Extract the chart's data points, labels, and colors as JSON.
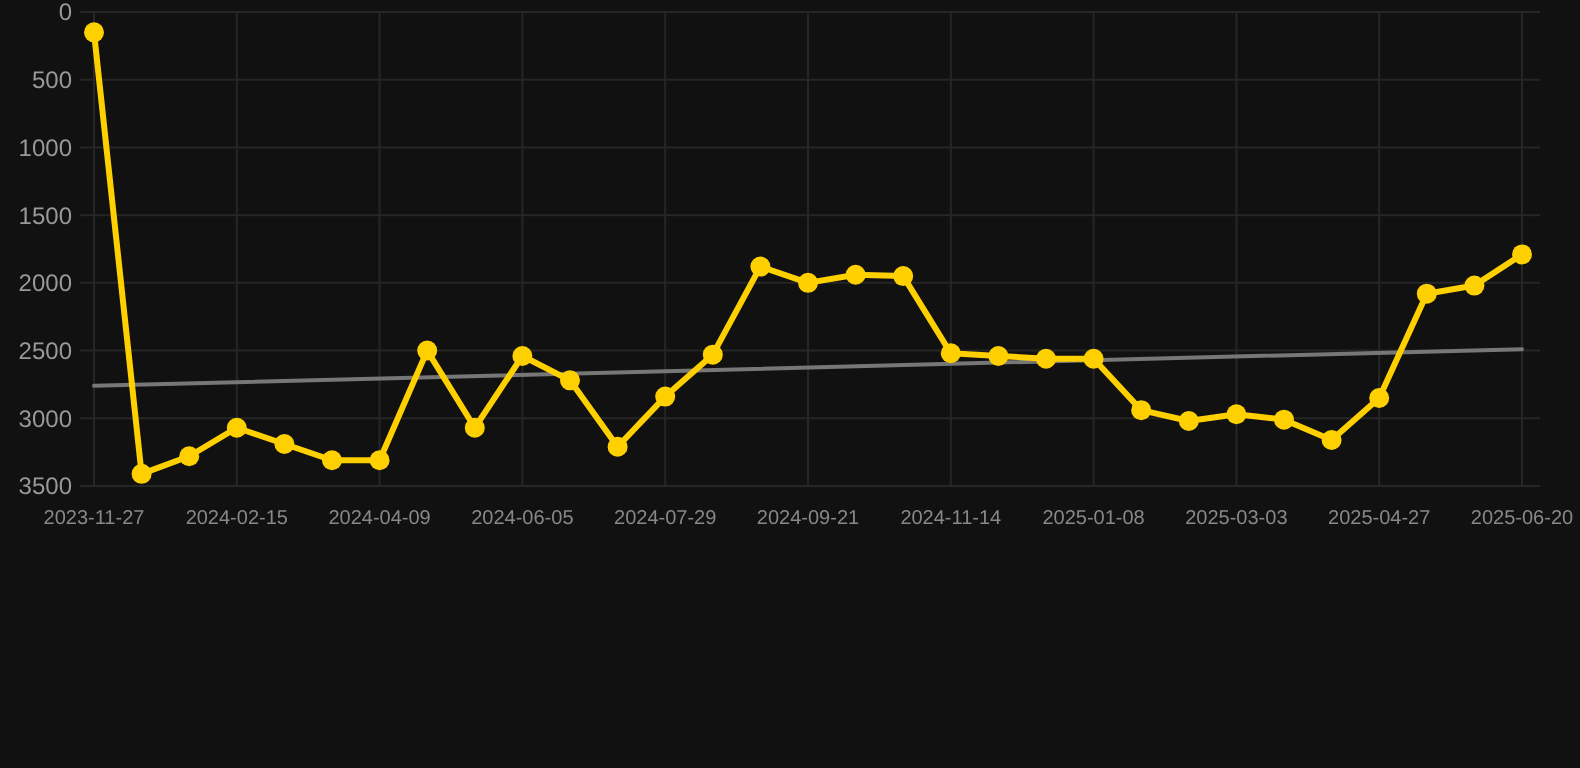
{
  "chart_data": {
    "type": "line",
    "categories": [
      "2023-11-27",
      null,
      null,
      "2024-02-15",
      null,
      null,
      "2024-04-09",
      null,
      null,
      "2024-06-05",
      null,
      null,
      "2024-07-29",
      null,
      null,
      "2024-09-21",
      null,
      null,
      "2024-11-14",
      null,
      null,
      "2025-01-08",
      null,
      null,
      "2025-03-03",
      null,
      null,
      "2025-04-27",
      null,
      null,
      "2025-06-20"
    ],
    "series": [
      {
        "color": "#ffd000",
        "marker": "circle",
        "values": [
          150,
          3410,
          3280,
          3070,
          3190,
          3310,
          3310,
          2500,
          3070,
          2540,
          2720,
          3210,
          2840,
          2530,
          1880,
          2000,
          1940,
          1950,
          2520,
          2540,
          2560,
          2560,
          2940,
          3020,
          2970,
          3010,
          3160,
          2850,
          2080,
          2020,
          1790
        ]
      },
      {
        "type": "line",
        "color": "#777777",
        "marker": "none",
        "values": [
          2760,
          null,
          null,
          null,
          null,
          null,
          null,
          null,
          null,
          null,
          null,
          null,
          null,
          null,
          null,
          null,
          null,
          null,
          null,
          null,
          null,
          null,
          null,
          null,
          null,
          null,
          null,
          null,
          null,
          null,
          2490
        ]
      }
    ],
    "ylim": [
      3500,
      0
    ],
    "yticks": [
      0,
      500,
      1000,
      1500,
      2000,
      2500,
      3000,
      3500
    ],
    "grid": true,
    "line_style": "solid"
  }
}
